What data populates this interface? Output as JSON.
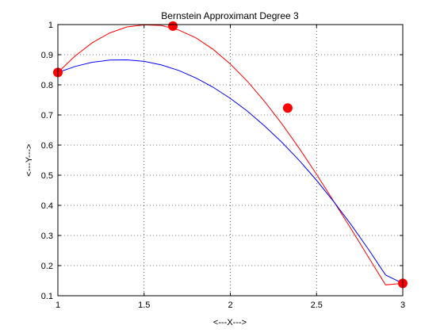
{
  "chart_data": {
    "type": "line",
    "title": "Bernstein Approximant Degree 3",
    "xlabel": "<---X--->",
    "ylabel": "<---Y--->",
    "xlim": [
      1,
      3
    ],
    "ylim": [
      0.1,
      1
    ],
    "grid": true,
    "x_ticks": [
      "1",
      "1.5",
      "2",
      "2.5",
      "3"
    ],
    "y_ticks": [
      "0.1",
      "0.2",
      "0.3",
      "0.4",
      "0.5",
      "0.6",
      "0.7",
      "0.8",
      "0.9",
      "1"
    ],
    "series": [
      {
        "color": "#ff0000",
        "style": "line",
        "x": [
          1.0,
          1.1,
          1.2,
          1.3,
          1.4,
          1.5,
          1.6,
          1.7,
          1.8,
          1.9,
          2.0,
          2.1,
          2.2,
          2.3,
          2.4,
          2.5,
          2.6,
          2.7,
          2.8,
          2.9,
          3.0
        ],
        "values": [
          0.841,
          0.896,
          0.94,
          0.972,
          0.992,
          0.999,
          0.997,
          0.982,
          0.956,
          0.918,
          0.869,
          0.811,
          0.744,
          0.67,
          0.589,
          0.503,
          0.413,
          0.322,
          0.229,
          0.136,
          0.141
        ]
      },
      {
        "color": "#0000ff",
        "style": "line",
        "x": [
          1.0,
          1.1,
          1.2,
          1.3,
          1.4,
          1.5,
          1.6,
          1.7,
          1.8,
          1.9,
          2.0,
          2.1,
          2.2,
          2.3,
          2.4,
          2.5,
          2.6,
          2.7,
          2.8,
          2.9,
          3.0
        ],
        "values": [
          0.841,
          0.861,
          0.875,
          0.882,
          0.883,
          0.878,
          0.866,
          0.848,
          0.823,
          0.792,
          0.755,
          0.712,
          0.663,
          0.609,
          0.549,
          0.483,
          0.412,
          0.336,
          0.255,
          0.169,
          0.141
        ]
      },
      {
        "color": "#ff0000",
        "style": "markers",
        "x": [
          1.0,
          1.667,
          2.333,
          3.0
        ],
        "values": [
          0.841,
          0.995,
          0.723,
          0.141
        ]
      }
    ]
  }
}
